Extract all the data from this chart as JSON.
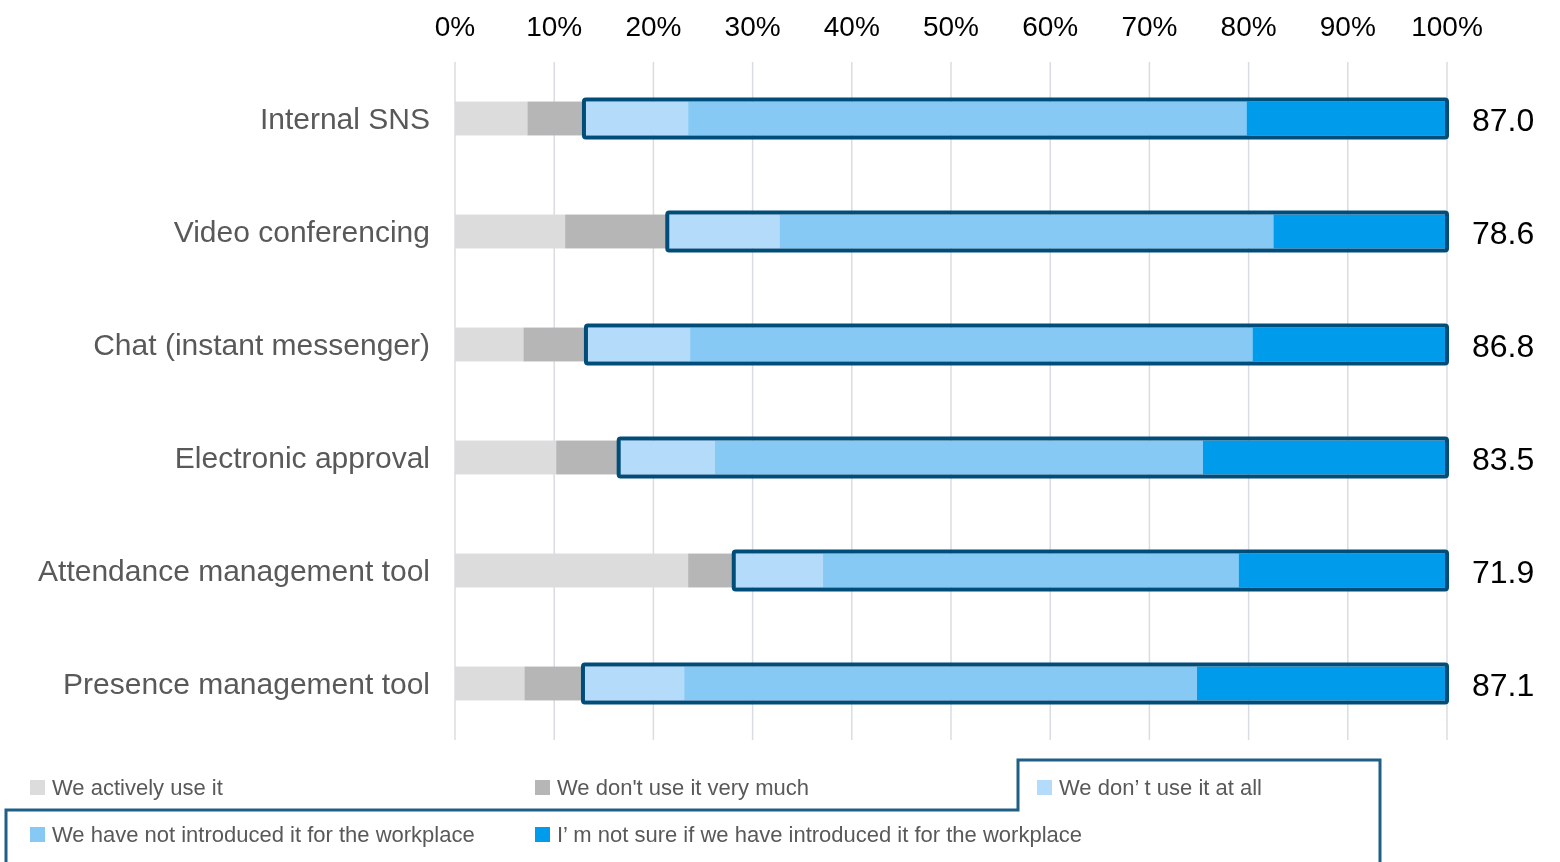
{
  "chart_data": {
    "type": "bar",
    "orientation": "horizontal",
    "stacked": true,
    "categories": [
      "Internal SNS",
      "Video conferencing",
      "Chat (instant messenger)",
      "Electronic approval",
      "Attendance management tool",
      "Presence management tool"
    ],
    "series": [
      {
        "name": "We actively use it",
        "color": "#dcdcdc",
        "values": [
          7.3,
          11.1,
          6.9,
          10.2,
          23.5,
          7.0
        ]
      },
      {
        "name": "We don't use it very much",
        "color": "#b6b6b6",
        "values": [
          5.7,
          10.3,
          6.3,
          6.3,
          4.6,
          5.9
        ]
      },
      {
        "name": "We don’ t use it at all",
        "color": "#b4dcfa",
        "values": [
          10.5,
          11.3,
          10.5,
          9.7,
          9.0,
          10.2
        ]
      },
      {
        "name": "We have not introduced it for the workplace",
        "color": "#87c9f5",
        "values": [
          56.3,
          49.8,
          56.7,
          49.2,
          41.9,
          51.7
        ]
      },
      {
        "name": "I’ m not sure if we have introduced it for the workplace",
        "color": "#009bea",
        "values": [
          20.2,
          17.5,
          19.6,
          24.6,
          21.0,
          25.2
        ]
      }
    ],
    "xlim": [
      0,
      100
    ],
    "xticks": [
      {
        "value": 0,
        "label": "0%"
      },
      {
        "value": 10,
        "label": "10%"
      },
      {
        "value": 20,
        "label": "20%"
      },
      {
        "value": 30,
        "label": "30%"
      },
      {
        "value": 40,
        "label": "40%"
      },
      {
        "value": 50,
        "label": "50%"
      },
      {
        "value": 60,
        "label": "60%"
      },
      {
        "value": 70,
        "label": "70%"
      },
      {
        "value": 80,
        "label": "80%"
      },
      {
        "value": 90,
        "label": "90%"
      },
      {
        "value": 100,
        "label": "100%"
      }
    ],
    "grid": "x",
    "legend": "bottom",
    "annotations": [
      "87.0",
      "78.6",
      "86.8",
      "83.5",
      "71.9",
      "87.1"
    ]
  }
}
